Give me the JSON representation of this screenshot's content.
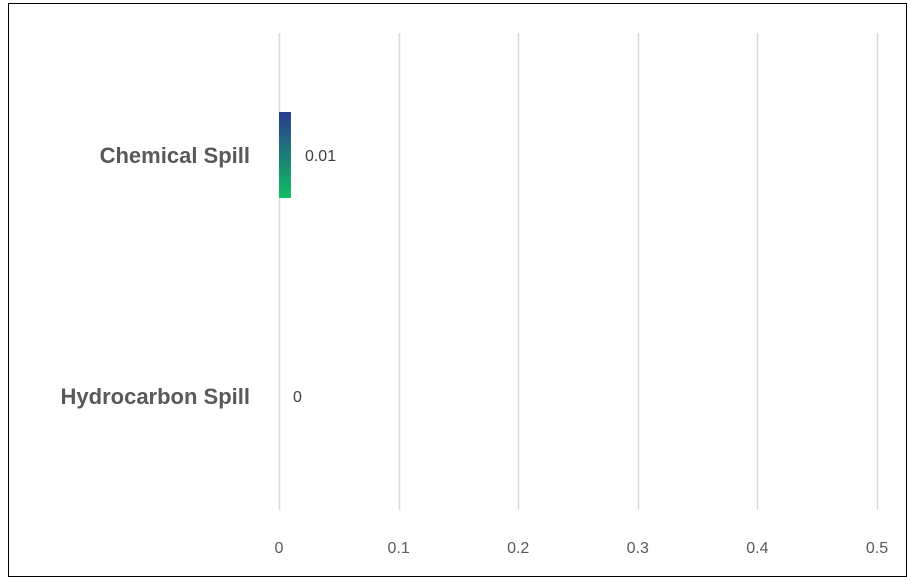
{
  "chart_data": {
    "type": "bar",
    "orientation": "horizontal",
    "categories": [
      "Chemical Spill",
      "Hydrocarbon Spill"
    ],
    "values": [
      0.01,
      0
    ],
    "data_labels": [
      "0.01",
      "0"
    ],
    "xlim": [
      0,
      0.5
    ],
    "xticks": [
      0,
      0.1,
      0.2,
      0.3,
      0.4,
      0.5
    ],
    "xtick_labels": [
      "0",
      "0.1",
      "0.2",
      "0.3",
      "0.4",
      "0.5"
    ],
    "grid": "vertical",
    "legend": "none",
    "title": "",
    "xlabel": "",
    "ylabel": "",
    "colors": {
      "bar_top": "#2b3a8f",
      "bar_bottom": "#0fbf5f",
      "gridline": "#d9d9d9",
      "text": "#595959",
      "frame": "#000000"
    }
  }
}
